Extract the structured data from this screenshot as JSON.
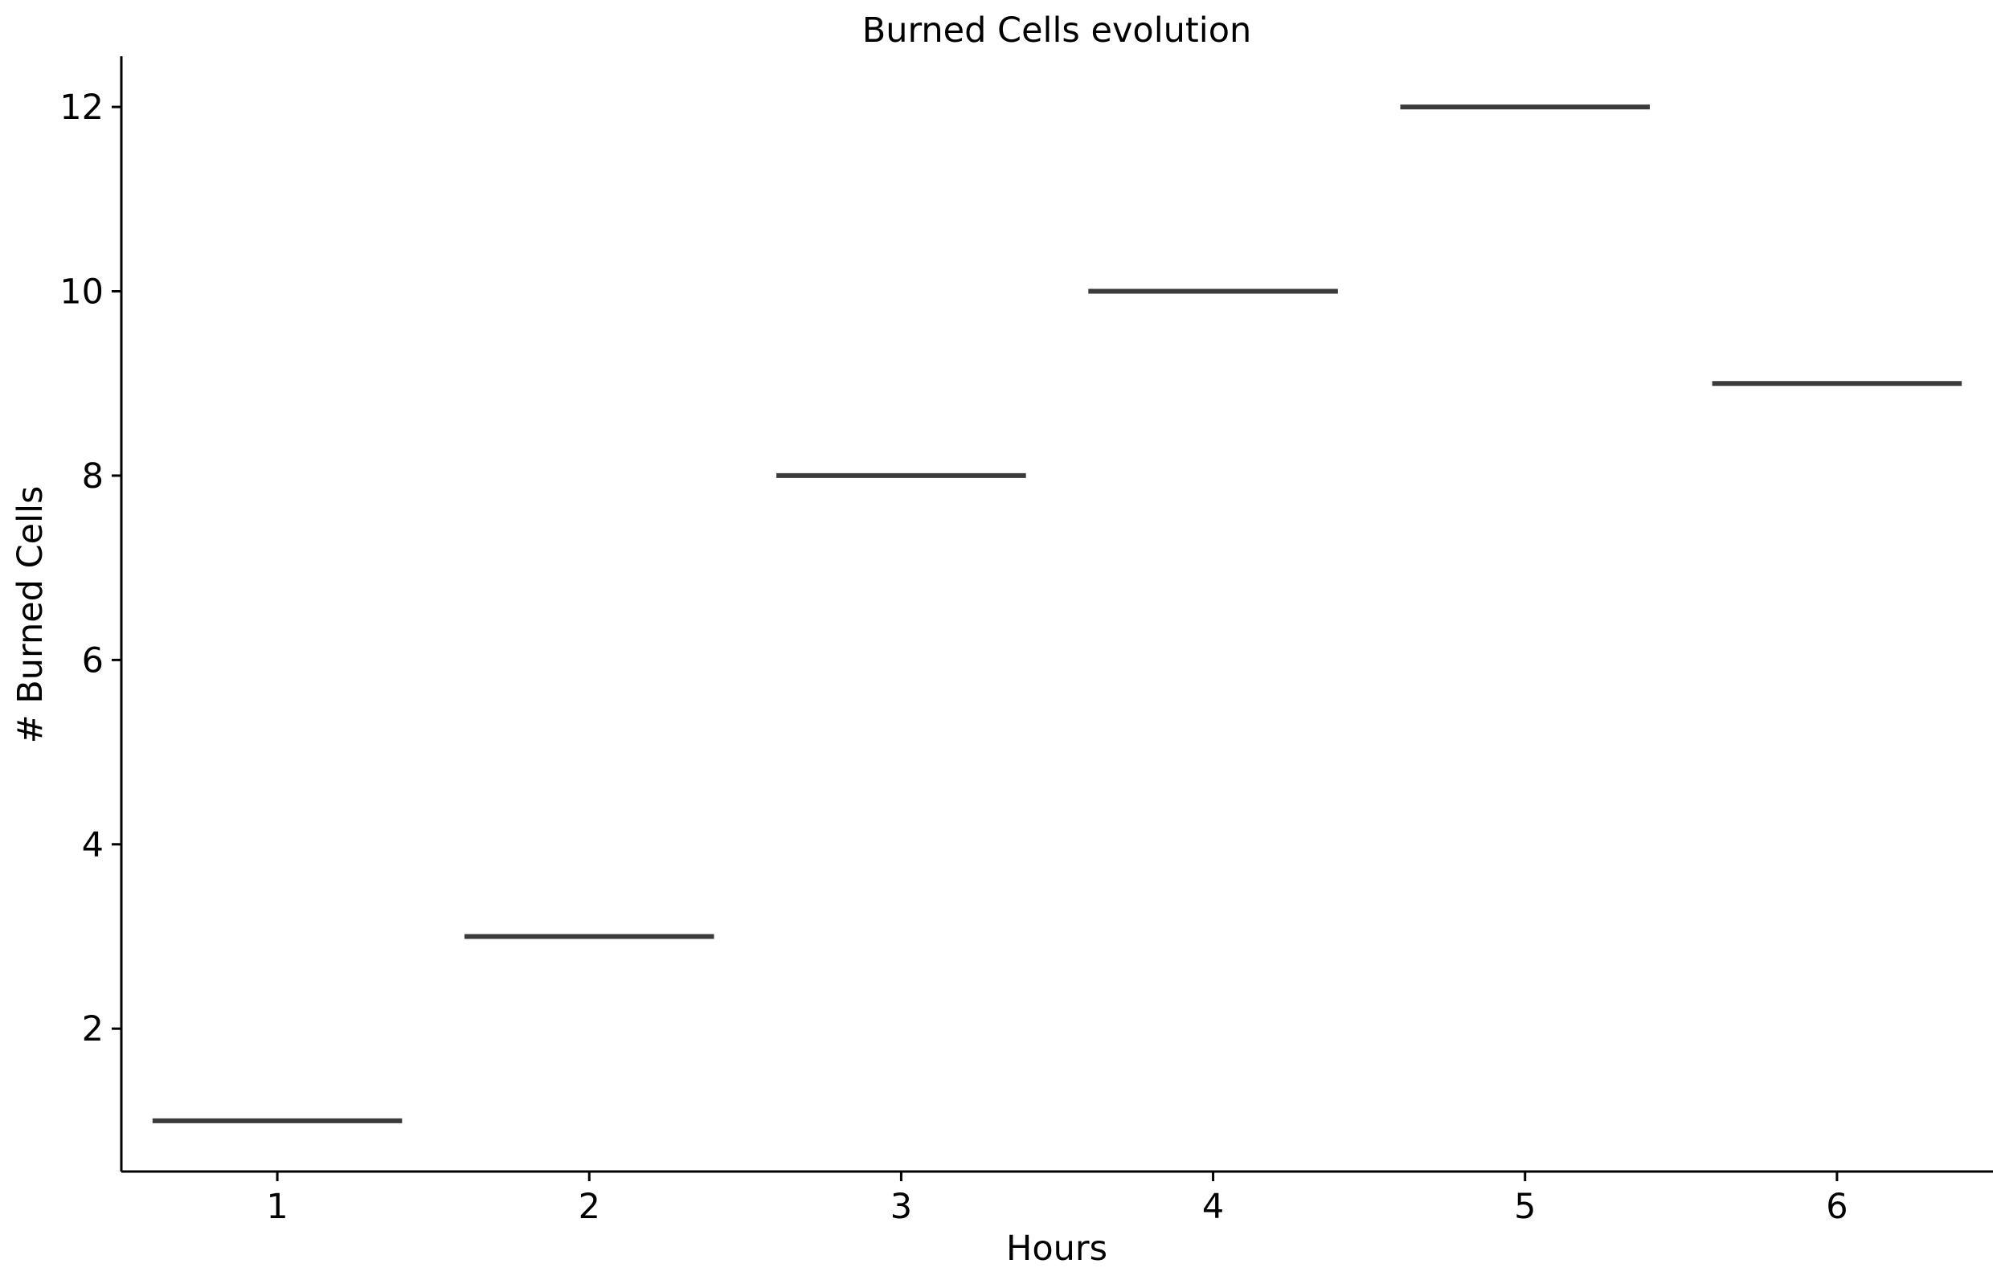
{
  "chart_data": {
    "type": "bar",
    "title": "Burned Cells evolution",
    "xlabel": "Hours",
    "ylabel": "# Burned Cells",
    "categories": [
      "1",
      "2",
      "3",
      "4",
      "5",
      "6"
    ],
    "values": [
      1,
      3,
      8,
      10,
      12,
      9
    ],
    "ylim": [
      0.45,
      12.55
    ],
    "yticks": [
      2,
      4,
      6,
      8,
      10,
      12
    ],
    "grid": false,
    "legend": "none",
    "colors": {
      "mark": "#3b3b3b",
      "axis": "#000000",
      "text": "#000000",
      "background": "#ffffff"
    }
  }
}
